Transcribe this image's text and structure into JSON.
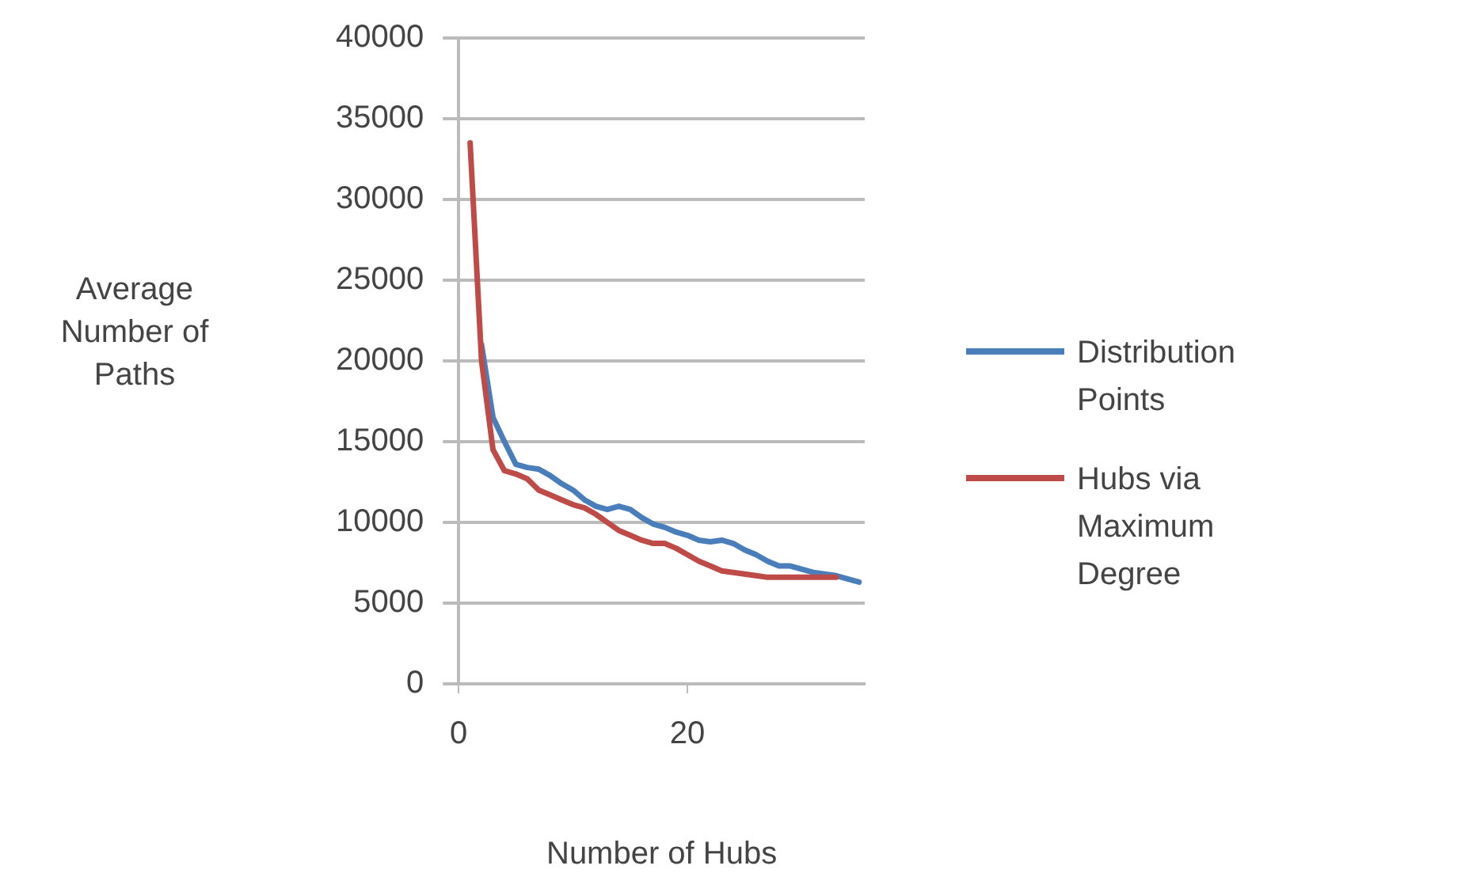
{
  "chart_data": {
    "type": "line",
    "xlabel": "Number of Hubs",
    "ylabel": "Average Number of Paths",
    "xlim": [
      0,
      35.5
    ],
    "xticks": [
      0,
      20
    ],
    "ylim": [
      0,
      40000
    ],
    "yticks": [
      0,
      5000,
      10000,
      15000,
      20000,
      25000,
      30000,
      35000,
      40000
    ],
    "grid": "y",
    "legend": "right",
    "marker": "none",
    "line_style": "solid",
    "series": [
      {
        "name": "Distribution Points",
        "color": "#4a7ebb",
        "x": [
          2,
          3,
          4,
          5,
          6,
          7,
          8,
          9,
          10,
          11,
          12,
          13,
          14,
          15,
          16,
          17,
          18,
          19,
          20,
          21,
          22,
          23,
          24,
          25,
          26,
          27,
          28,
          29,
          30,
          31,
          32,
          33,
          34,
          35
        ],
        "values": [
          21000,
          16500,
          15000,
          13600,
          13400,
          13300,
          12900,
          12400,
          12000,
          11400,
          11000,
          10800,
          11000,
          10800,
          10300,
          9900,
          9700,
          9400,
          9200,
          8900,
          8800,
          8900,
          8700,
          8300,
          8000,
          7600,
          7300,
          7300,
          7100,
          6900,
          6800,
          6700,
          6500,
          6300
        ]
      },
      {
        "name": "Hubs via Maximum Degree",
        "color": "#be4b48",
        "x": [
          1,
          2,
          3,
          4,
          5,
          6,
          7,
          8,
          9,
          10,
          11,
          12,
          13,
          14,
          15,
          16,
          17,
          18,
          19,
          20,
          21,
          22,
          23,
          24,
          25,
          26,
          27,
          28,
          29,
          30,
          31,
          32,
          33
        ],
        "values": [
          33500,
          20000,
          14500,
          13200,
          13000,
          12700,
          12000,
          11700,
          11400,
          11100,
          10900,
          10500,
          10000,
          9500,
          9200,
          8900,
          8700,
          8700,
          8400,
          8000,
          7600,
          7300,
          7000,
          6900,
          6800,
          6700,
          6600,
          6600,
          6600,
          6600,
          6600,
          6600,
          6600
        ]
      }
    ]
  }
}
